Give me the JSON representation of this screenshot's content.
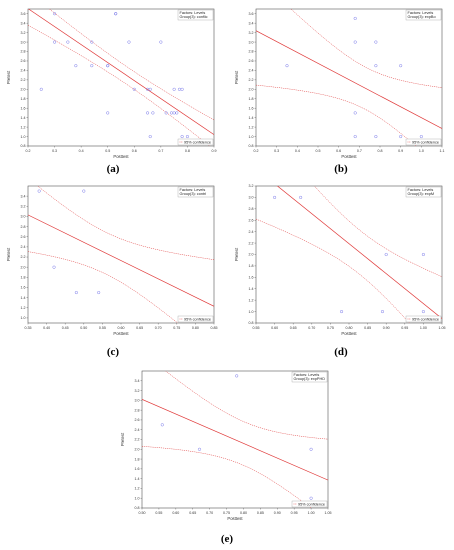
{
  "chart_data": [
    {
      "type": "scatter",
      "panel_label": "(a)",
      "xlabel": "Posttest",
      "ylabel": "Pretest",
      "xlim": [
        0.2,
        0.9
      ],
      "ylim": [
        0.8,
        3.7
      ],
      "xticks": [
        "0.2",
        "0.3",
        "0.4",
        "0.5",
        "0.6",
        "0.7",
        "0.8",
        "0.9"
      ],
      "yticks": [
        "0.8",
        "1.0",
        "1.2",
        "1.4",
        "1.6",
        "1.8",
        "2.0",
        "2.2",
        "2.4",
        "2.6",
        "2.8",
        "3.0",
        "3.2",
        "3.4",
        "3.6"
      ],
      "legend_title": [
        "Factors: Levels",
        "Group(3): conflic"
      ],
      "confidence_label": "95% confidence",
      "points": [
        [
          0.25,
          2.0
        ],
        [
          0.3,
          3.6
        ],
        [
          0.3,
          3.0
        ],
        [
          0.35,
          3.0
        ],
        [
          0.38,
          2.5
        ],
        [
          0.44,
          3.0
        ],
        [
          0.44,
          2.5
        ],
        [
          0.5,
          2.5
        ],
        [
          0.5,
          2.5
        ],
        [
          0.5,
          1.5
        ],
        [
          0.53,
          3.6
        ],
        [
          0.53,
          3.6
        ],
        [
          0.58,
          3.0
        ],
        [
          0.6,
          2.0
        ],
        [
          0.65,
          2.0
        ],
        [
          0.65,
          1.5
        ],
        [
          0.66,
          2.0
        ],
        [
          0.67,
          1.5
        ],
        [
          0.7,
          3.0
        ],
        [
          0.72,
          1.5
        ],
        [
          0.75,
          2.0
        ],
        [
          0.75,
          1.5
        ],
        [
          0.76,
          1.5
        ],
        [
          0.77,
          2.0
        ],
        [
          0.78,
          2.0
        ],
        [
          0.78,
          1.0
        ],
        [
          0.8,
          1.0
        ],
        [
          0.66,
          1.0
        ],
        [
          0.74,
          1.5
        ]
      ],
      "fit": {
        "intercept": 4.47,
        "slope": -3.81
      },
      "ci": {
        "ci_a": 0.035,
        "ci_b": 0.6,
        "xbar": 0.58
      }
    },
    {
      "type": "scatter",
      "panel_label": "(b)",
      "xlabel": "Posttest",
      "ylabel": "Pretest",
      "xlim": [
        0.2,
        1.1
      ],
      "ylim": [
        0.8,
        3.7
      ],
      "xticks": [
        "0.2",
        "0.3",
        "0.4",
        "0.5",
        "0.6",
        "0.7",
        "0.8",
        "0.9",
        "1.0",
        "1.1"
      ],
      "yticks": [
        "0.8",
        "1.0",
        "1.2",
        "1.4",
        "1.6",
        "1.8",
        "2.0",
        "2.2",
        "2.4",
        "2.6",
        "2.8",
        "3.0",
        "3.2",
        "3.4",
        "3.6"
      ],
      "legend_title": [
        "Factors: Levels",
        "Group(3): expBo"
      ],
      "confidence_label": "95% confidence",
      "points": [
        [
          0.35,
          2.5
        ],
        [
          0.68,
          3.5
        ],
        [
          0.68,
          3.0
        ],
        [
          0.68,
          1.5
        ],
        [
          0.68,
          1.0
        ],
        [
          0.78,
          3.0
        ],
        [
          0.78,
          2.5
        ],
        [
          0.78,
          1.0
        ],
        [
          0.9,
          2.5
        ],
        [
          0.9,
          1.0
        ],
        [
          1.0,
          1.0
        ]
      ],
      "fit": {
        "intercept": 3.7,
        "slope": -2.3
      },
      "ci": {
        "ci_a": 0.2,
        "ci_b": 4.0,
        "xbar": 0.73
      }
    },
    {
      "type": "scatter",
      "panel_label": "(c)",
      "xlabel": "Posttest",
      "ylabel": "Pretest",
      "xlim": [
        0.35,
        0.85
      ],
      "ylim": [
        0.9,
        3.6
      ],
      "xticks": [
        "0.35",
        "0.40",
        "0.45",
        "0.50",
        "0.55",
        "0.60",
        "0.65",
        "0.70",
        "0.75",
        "0.80",
        "0.85"
      ],
      "yticks": [
        "1.0",
        "1.2",
        "1.4",
        "1.6",
        "1.8",
        "2.0",
        "2.2",
        "2.4",
        "2.6",
        "2.8",
        "3.0",
        "3.2",
        "3.4"
      ],
      "legend_title": [
        "Factors: Levels",
        "Group(3): contrl"
      ],
      "confidence_label": "95% confidence",
      "points": [
        [
          0.38,
          3.5
        ],
        [
          0.42,
          2.0
        ],
        [
          0.48,
          1.5
        ],
        [
          0.5,
          3.5
        ],
        [
          0.54,
          1.5
        ],
        [
          0.76,
          3.5
        ],
        [
          0.83,
          1.0
        ]
      ],
      "fit": {
        "intercept": 4.29,
        "slope": -3.6
      },
      "ci": {
        "ci_a": 0.17,
        "ci_b": 8.0,
        "xbar": 0.56
      }
    },
    {
      "type": "scatter",
      "panel_label": "(d)",
      "xlabel": "Posttest",
      "ylabel": "Pretest",
      "xlim": [
        0.55,
        1.05
      ],
      "ylim": [
        0.8,
        3.2
      ],
      "xticks": [
        "0.55",
        "0.60",
        "0.65",
        "0.70",
        "0.75",
        "0.80",
        "0.85",
        "0.90",
        "0.95",
        "1.00",
        "1.05"
      ],
      "yticks": [
        "0.8",
        "1.0",
        "1.2",
        "1.4",
        "1.6",
        "1.8",
        "2.0",
        "2.2",
        "2.4",
        "2.6",
        "2.8",
        "3.0",
        "3.2"
      ],
      "legend_title": [
        "Factors: Levels",
        "Group(3): expM"
      ],
      "confidence_label": "95% confidence",
      "points": [
        [
          0.6,
          3.0
        ],
        [
          0.67,
          3.0
        ],
        [
          0.78,
          1.0
        ],
        [
          0.89,
          1.0
        ],
        [
          0.9,
          2.0
        ],
        [
          1.0,
          2.0
        ],
        [
          1.0,
          1.0
        ]
      ],
      "fit": {
        "intercept": 6.39,
        "slope": -5.25
      },
      "ci": {
        "ci_a": 0.15,
        "ci_b": 8.0,
        "xbar": 0.83
      }
    },
    {
      "type": "scatter",
      "panel_label": "(e)",
      "xlabel": "Posttest",
      "ylabel": "Pretest",
      "xlim": [
        0.5,
        1.05
      ],
      "ylim": [
        0.8,
        3.6
      ],
      "xticks": [
        "0.50",
        "0.55",
        "0.60",
        "0.65",
        "0.70",
        "0.75",
        "0.80",
        "0.85",
        "0.90",
        "0.95",
        "1.00",
        "1.05"
      ],
      "yticks": [
        "0.8",
        "1.0",
        "1.2",
        "1.4",
        "1.6",
        "1.8",
        "2.0",
        "2.2",
        "2.4",
        "2.6",
        "2.8",
        "3.0",
        "3.2",
        "3.4"
      ],
      "legend_title": [
        "Factors: Levels",
        "Group(3): expPHD"
      ],
      "confidence_label": "95% confidence",
      "points": [
        [
          0.56,
          2.5
        ],
        [
          0.67,
          2.0
        ],
        [
          0.78,
          3.5
        ],
        [
          1.0,
          2.0
        ],
        [
          1.0,
          1.0
        ]
      ],
      "fit": {
        "intercept": 4.52,
        "slope": -3.0
      },
      "ci": {
        "ci_a": 0.2,
        "ci_b": 8.0,
        "xbar": 0.8
      }
    }
  ],
  "style": {
    "point_color": "#7b7bea",
    "fit_color": "#e03a3a",
    "ci_color": "#e03a3a",
    "axis_color": "#555555",
    "plot_bg": "#ffffff"
  }
}
